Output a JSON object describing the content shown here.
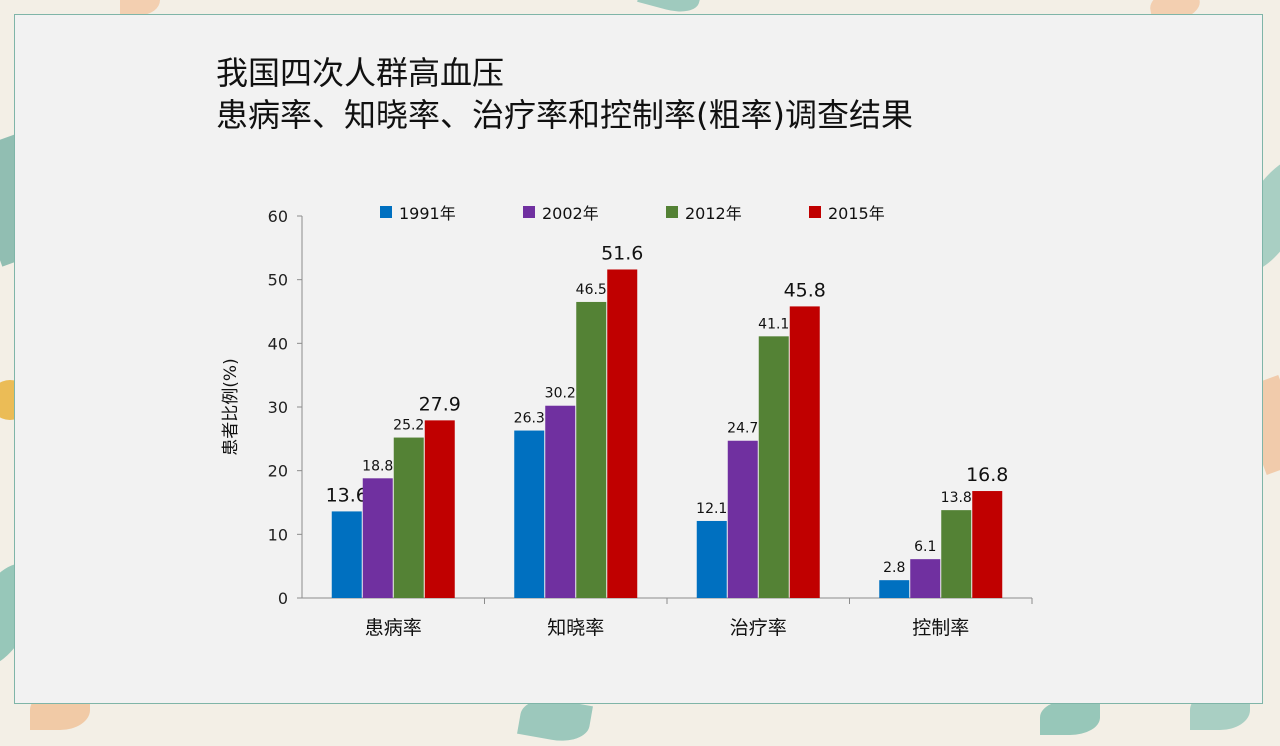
{
  "title_line1": "我国四次人群高血压",
  "title_line2": "患病率、知晓率、治疗率和控制率(粗率)调查结果",
  "chart_data": {
    "type": "bar",
    "categories": [
      "患病率",
      "知晓率",
      "治疗率",
      "控制率"
    ],
    "series": [
      {
        "name": "1991年",
        "color": "#0070c0",
        "values": [
          13.6,
          26.3,
          12.1,
          2.8
        ]
      },
      {
        "name": "2002年",
        "color": "#7030a0",
        "values": [
          18.8,
          30.2,
          24.7,
          6.1
        ]
      },
      {
        "name": "2012年",
        "color": "#548235",
        "values": [
          25.2,
          46.5,
          41.1,
          13.8
        ]
      },
      {
        "name": "2015年",
        "color": "#c00000",
        "values": [
          27.9,
          51.6,
          45.8,
          16.8
        ]
      }
    ],
    "ylabel": "患者比例(%)",
    "ylim": [
      0,
      60
    ],
    "yticks": [
      0,
      10,
      20,
      30,
      40,
      50,
      60
    ],
    "legend_position": "top",
    "grid": false
  }
}
